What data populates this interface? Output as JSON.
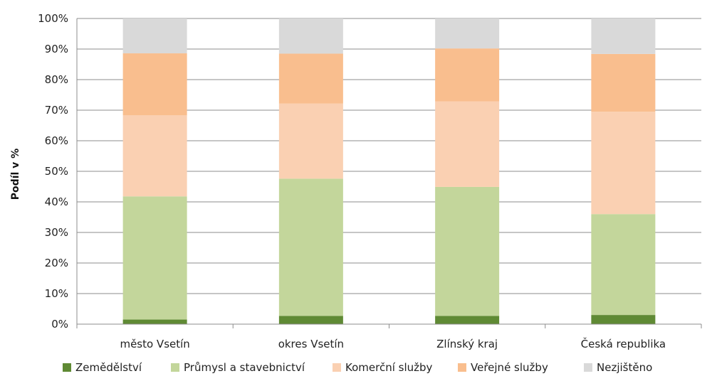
{
  "chart_data": {
    "type": "bar",
    "stacked": true,
    "title": "",
    "xlabel": "",
    "ylabel": "Podíl v %",
    "ylim": [
      0,
      100
    ],
    "yticks": [
      "0%",
      "10%",
      "20%",
      "30%",
      "40%",
      "50%",
      "60%",
      "70%",
      "80%",
      "90%",
      "100%"
    ],
    "grid": true,
    "legend_position": "bottom",
    "categories": [
      "město Vsetín",
      "okres Vsetín",
      "Zlínský kraj",
      "Česká republika"
    ],
    "series": [
      {
        "name": "Zemědělství",
        "color": "#5f8a34",
        "values": [
          1.5,
          2.7,
          2.7,
          3.0
        ]
      },
      {
        "name": "Průmysl a stavebnictví",
        "color": "#c3d69b",
        "values": [
          40.3,
          44.9,
          42.2,
          33.0
        ]
      },
      {
        "name": "Komerční služby",
        "color": "#fad0b2",
        "values": [
          26.5,
          24.6,
          28.0,
          33.5
        ]
      },
      {
        "name": "Veřejné služby",
        "color": "#f9be8e",
        "values": [
          20.3,
          16.3,
          17.3,
          18.9
        ]
      },
      {
        "name": "Nezjištěno",
        "color": "#d9d9d9",
        "values": [
          11.4,
          11.5,
          9.8,
          11.6
        ]
      }
    ]
  }
}
